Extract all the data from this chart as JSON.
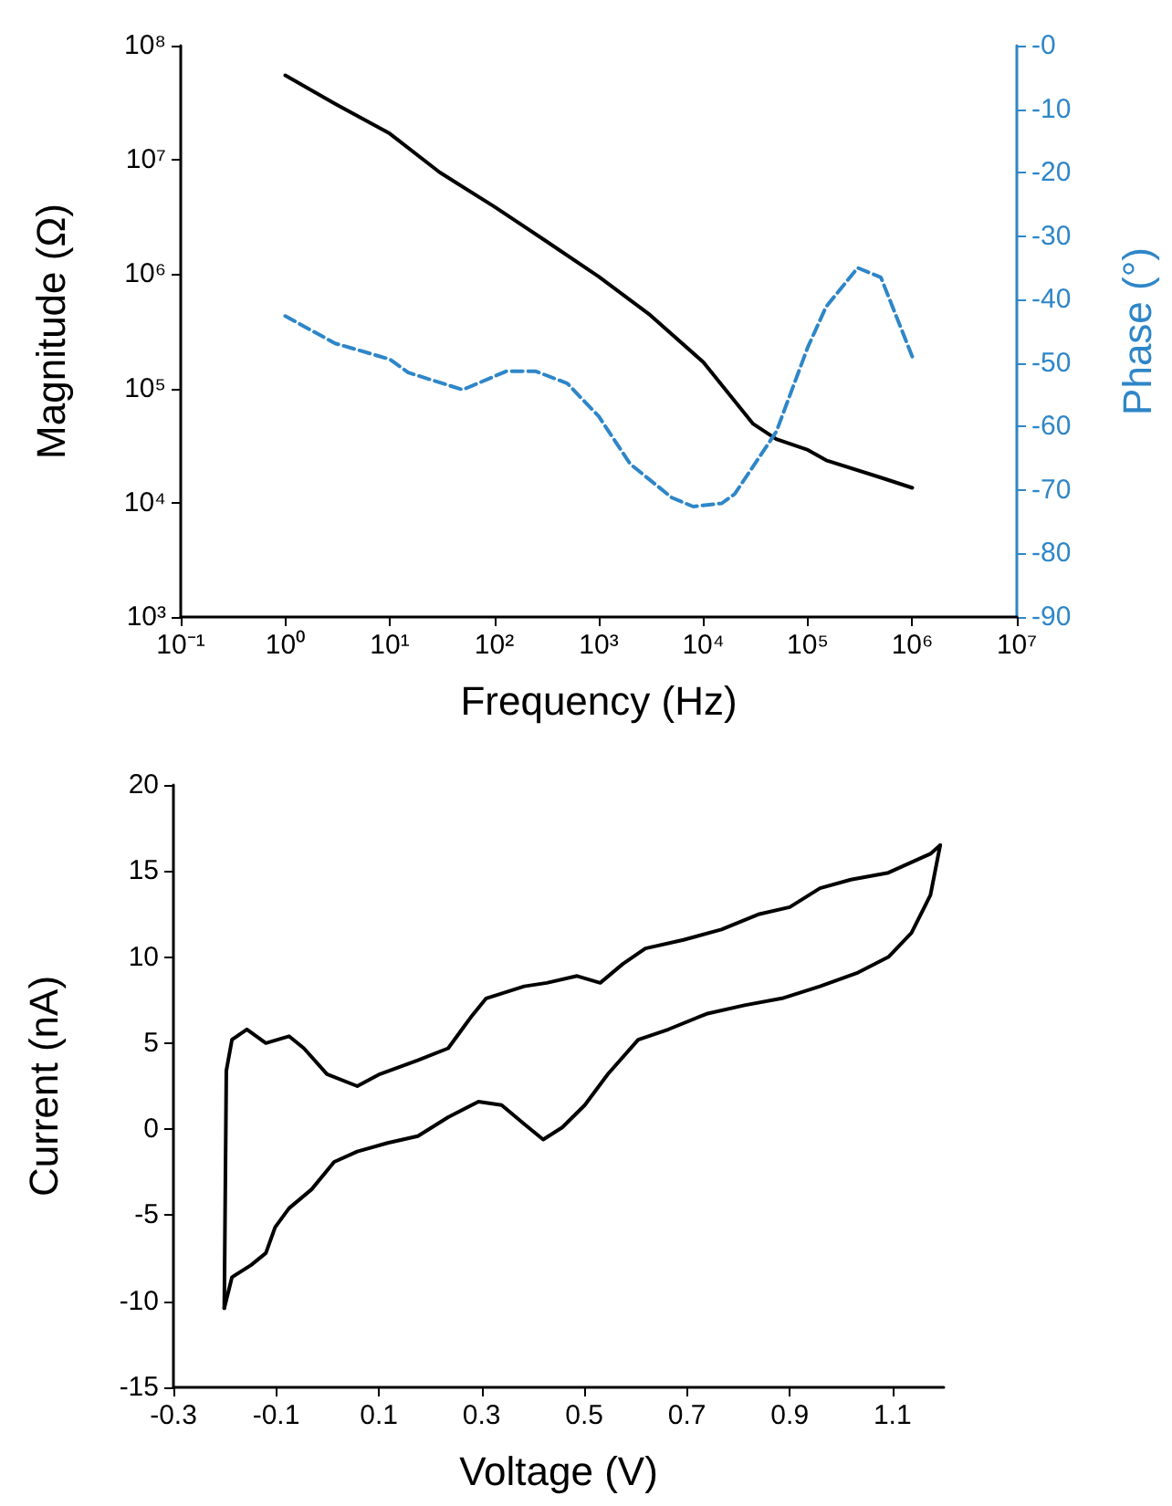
{
  "chart_data": [
    {
      "type": "line",
      "xlabel": "Frequency (Hz)",
      "ylabel": "Magnitude (Ω)",
      "y2label": "Phase (°)",
      "log": "xy",
      "grid": false,
      "marker": "none",
      "xlim": [
        0.1,
        10000000
      ],
      "xticks": [
        {
          "value": 0.1,
          "label": "10⁻¹"
        },
        {
          "value": 1,
          "label": "10⁰"
        },
        {
          "value": 10,
          "label": "10¹"
        },
        {
          "value": 100,
          "label": "10²"
        },
        {
          "value": 1000,
          "label": "10³"
        },
        {
          "value": 10000,
          "label": "10⁴"
        },
        {
          "value": 100000,
          "label": "10⁵"
        },
        {
          "value": 1000000,
          "label": "10⁶"
        },
        {
          "value": 10000000,
          "label": "10⁷"
        }
      ],
      "ylim": [
        1000,
        100000000
      ],
      "yticks": [
        {
          "value": 1000,
          "label": "10³"
        },
        {
          "value": 10000,
          "label": "10⁴"
        },
        {
          "value": 100000,
          "label": "10⁵"
        },
        {
          "value": 1000000,
          "label": "10⁶"
        },
        {
          "value": 10000000,
          "label": "10⁷"
        },
        {
          "value": 100000000,
          "label": "10⁸"
        }
      ],
      "y2lim": [
        -90,
        0
      ],
      "y2ticks": [
        -90,
        -80,
        -70,
        -60,
        -50,
        -40,
        -30,
        -20,
        -10,
        {
          "value": 0,
          "label": "-0"
        }
      ],
      "series": [
        {
          "color": "#000000",
          "line_style": "solid",
          "x": [
            1,
            3,
            10,
            30,
            100,
            300,
            1000,
            3000,
            10000,
            30000,
            50000,
            100000,
            150000,
            500000,
            1000000
          ],
          "values": [
            55000000,
            31000000,
            17000000,
            7800000,
            3900000,
            2000000,
            950000,
            450000,
            170000,
            49000,
            36000,
            29000,
            23500,
            16600,
            13500
          ]
        },
        {
          "color": "#2e86c8",
          "line_style": "dashed",
          "axis": "y2",
          "x": [
            1,
            3,
            10,
            15,
            50,
            130,
            250,
            500,
            1000,
            2000,
            5000,
            8000,
            15000,
            20000,
            50000,
            100000,
            150000,
            300000,
            500000,
            1000000
          ],
          "values": [
            -42.6,
            -46.9,
            -49.4,
            -51.5,
            -54.2,
            -51.3,
            -51.3,
            -53.2,
            -58.4,
            -65.9,
            -71.2,
            -72.6,
            -72.1,
            -70.6,
            -60.8,
            -47.5,
            -41.1,
            -35.0,
            -36.5,
            -49.0
          ]
        }
      ]
    },
    {
      "type": "line",
      "xlabel": "Voltage (V)",
      "ylabel": "Current (nA)",
      "grid": false,
      "marker": "none",
      "xlim": [
        -0.3,
        1.2
      ],
      "xticks": [
        -0.3,
        -0.1,
        0.1,
        0.3,
        0.5,
        0.7,
        0.9,
        1.1
      ],
      "ylim": [
        -15,
        20
      ],
      "yticks": [
        -15,
        -10,
        -5,
        0,
        5,
        10,
        15,
        20
      ],
      "series": [
        {
          "color": "#000000",
          "line_style": "solid",
          "x": [
            -0.201,
            -0.186,
            -0.149,
            -0.12,
            -0.102,
            -0.075,
            -0.031,
            0.013,
            0.058,
            0.117,
            0.176,
            0.235,
            0.294,
            0.339,
            0.383,
            0.42,
            0.457,
            0.501,
            0.546,
            0.605,
            0.664,
            0.738,
            0.812,
            0.885,
            0.959,
            1.033,
            1.092,
            1.137,
            1.174,
            1.193
          ],
          "values": [
            -10.4,
            -8.6,
            -7.9,
            -7.2,
            -5.7,
            -4.6,
            -3.5,
            -1.9,
            -1.3,
            -0.8,
            -0.4,
            0.7,
            1.6,
            1.4,
            0.3,
            -0.6,
            0.1,
            1.4,
            3.2,
            5.2,
            5.8,
            6.7,
            7.2,
            7.6,
            8.3,
            9.1,
            10.0,
            11.4,
            13.6,
            16.5
          ]
        },
        {
          "color": "#000000",
          "line_style": "solid",
          "x": [
            -0.201,
            -0.197,
            -0.186,
            -0.157,
            -0.12,
            -0.075,
            -0.046,
            -0.001,
            0.058,
            0.102,
            0.176,
            0.235,
            0.279,
            0.309,
            0.383,
            0.427,
            0.486,
            0.531,
            0.575,
            0.619,
            0.693,
            0.767,
            0.841,
            0.9,
            0.959,
            1.019,
            1.092,
            1.174,
            1.193
          ],
          "values": [
            -10.4,
            3.4,
            5.2,
            5.8,
            5.0,
            5.4,
            4.7,
            3.2,
            2.5,
            3.2,
            4.0,
            4.7,
            6.5,
            7.6,
            8.3,
            8.5,
            8.9,
            8.5,
            9.6,
            10.5,
            11.0,
            11.6,
            12.5,
            12.9,
            14.0,
            14.5,
            14.9,
            16.0,
            16.5
          ]
        }
      ]
    }
  ]
}
